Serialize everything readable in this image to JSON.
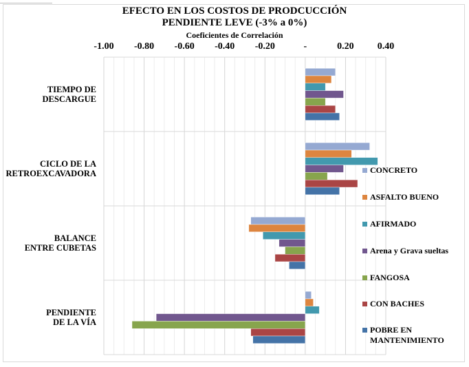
{
  "chart_data": {
    "type": "bar",
    "orientation": "horizontal",
    "title": "EFECTO EN LOS COSTOS DE PRODCUCCIÓN",
    "subtitle": "PENDIENTE LEVE (-3% a 0%)",
    "xlabel": "Coeficientes de Correlación",
    "x_axis_position": "top",
    "xlim": [
      -1.0,
      0.4
    ],
    "tick_values": [
      -1.0,
      -0.8,
      -0.6,
      -0.4,
      -0.2,
      0,
      0.2,
      0.4
    ],
    "tick_labels": [
      "-1.00",
      "-0.80",
      "-0.60",
      "-0.40",
      "-0.20",
      "-",
      "0.20",
      "0.40"
    ],
    "grid": true,
    "legend_position": "right",
    "categories": [
      [
        "TIEMPO DE",
        "DESCARGUE"
      ],
      [
        "CICLO DE LA",
        "RETROEXCAVADORA"
      ],
      [
        "BALANCE",
        "ENTRE CUBETAS"
      ],
      [
        "PENDIENTE",
        "DE LA VÍA"
      ]
    ],
    "series": [
      {
        "name": "CONCRETO",
        "color": "#95a9d2",
        "values": [
          0.15,
          0.32,
          -0.27,
          0.03
        ]
      },
      {
        "name": "ASFALTO BUENO",
        "color": "#dd853f",
        "values": [
          0.13,
          0.23,
          -0.28,
          0.04
        ]
      },
      {
        "name": "AFIRMADO",
        "color": "#4299ae",
        "values": [
          0.1,
          0.36,
          -0.21,
          0.07
        ]
      },
      {
        "name": "Arena y Grava sueltas",
        "color": "#71578e",
        "values": [
          0.19,
          0.19,
          -0.13,
          -0.74
        ]
      },
      {
        "name": "FANGOSA",
        "color": "#87a54d",
        "values": [
          0.1,
          0.11,
          -0.1,
          -0.86
        ]
      },
      {
        "name": "CON BACHES",
        "color": "#aa4545",
        "values": [
          0.15,
          0.26,
          -0.15,
          -0.27
        ]
      },
      {
        "name": [
          "POBRE EN",
          "MANTENIMIENTO"
        ],
        "color": "#4473a7",
        "values": [
          0.17,
          0.17,
          -0.08,
          -0.26
        ]
      }
    ]
  }
}
